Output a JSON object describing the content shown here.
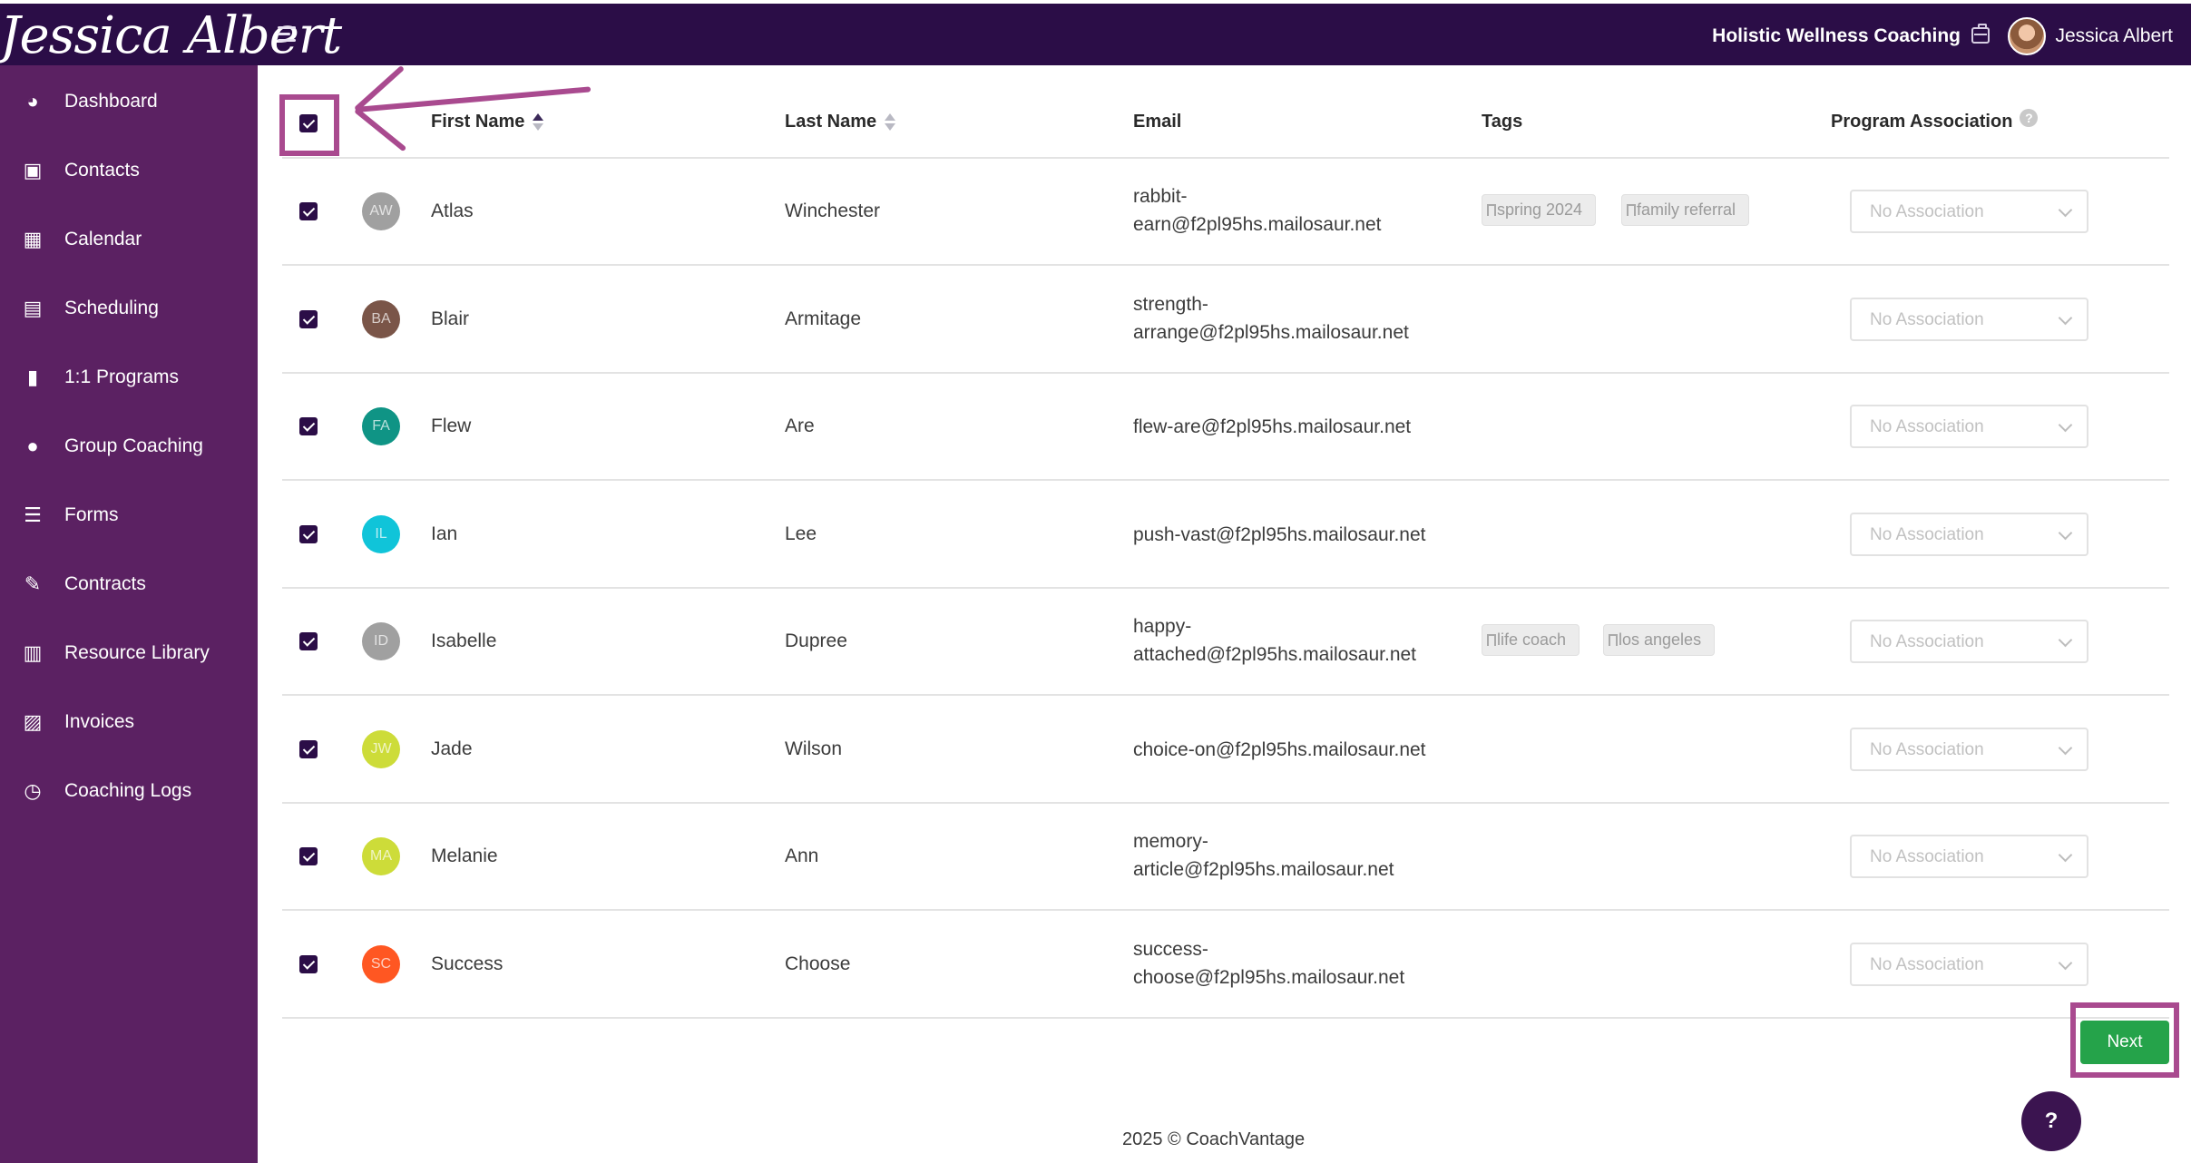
{
  "header": {
    "logo": "Jessica Albert",
    "business_name": "Holistic Wellness Coaching",
    "user_name": "Jessica Albert"
  },
  "sidebar": {
    "items": [
      {
        "label": "Dashboard",
        "icon": "dashboard-icon"
      },
      {
        "label": "Contacts",
        "icon": "contacts-icon"
      },
      {
        "label": "Calendar",
        "icon": "calendar-icon"
      },
      {
        "label": "Scheduling",
        "icon": "scheduling-icon"
      },
      {
        "label": "1:1 Programs",
        "icon": "book-icon"
      },
      {
        "label": "Group Coaching",
        "icon": "group-icon"
      },
      {
        "label": "Forms",
        "icon": "checklist-icon"
      },
      {
        "label": "Contracts",
        "icon": "contract-icon"
      },
      {
        "label": "Resource Library",
        "icon": "library-icon"
      },
      {
        "label": "Invoices",
        "icon": "invoice-icon"
      },
      {
        "label": "Coaching Logs",
        "icon": "clock-icon"
      }
    ]
  },
  "table": {
    "columns": {
      "first_name": "First Name",
      "last_name": "Last Name",
      "email": "Email",
      "tags": "Tags",
      "program_association": "Program Association"
    },
    "rows": [
      {
        "initials": "AW",
        "avatar_color": "#a0a0a0",
        "first": "Atlas",
        "last": "Winchester",
        "email_1": "rabbit-",
        "email_2": "earn@f2pl95hs.mailosaur.net",
        "tags": [
          "spring 2024",
          "family referral"
        ],
        "association": "No Association"
      },
      {
        "initials": "BA",
        "avatar_color": "#7a5548",
        "first": "Blair",
        "last": "Armitage",
        "email_1": "strength-",
        "email_2": "arrange@f2pl95hs.mailosaur.net",
        "tags": [],
        "association": "No Association"
      },
      {
        "initials": "FA",
        "avatar_color": "#0f9485",
        "first": "Flew",
        "last": "Are",
        "email_1": "flew-are@f2pl95hs.mailosaur.net",
        "email_2": "",
        "tags": [],
        "association": "No Association"
      },
      {
        "initials": "IL",
        "avatar_color": "#10c4d9",
        "first": "Ian",
        "last": "Lee",
        "email_1": "push-vast@f2pl95hs.mailosaur.net",
        "email_2": "",
        "tags": [],
        "association": "No Association"
      },
      {
        "initials": "ID",
        "avatar_color": "#a0a0a0",
        "first": "Isabelle",
        "last": "Dupree",
        "email_1": "happy-",
        "email_2": "attached@f2pl95hs.mailosaur.net",
        "tags": [
          "life coach",
          "los angeles"
        ],
        "association": "No Association"
      },
      {
        "initials": "JW",
        "avatar_color": "#cddc39",
        "first": "Jade",
        "last": "Wilson",
        "email_1": "choice-on@f2pl95hs.mailosaur.net",
        "email_2": "",
        "tags": [],
        "association": "No Association"
      },
      {
        "initials": "MA",
        "avatar_color": "#cddc39",
        "first": "Melanie",
        "last": "Ann",
        "email_1": "memory-",
        "email_2": "article@f2pl95hs.mailosaur.net",
        "tags": [],
        "association": "No Association"
      },
      {
        "initials": "SC",
        "avatar_color": "#ff5722",
        "first": "Success",
        "last": "Choose",
        "email_1": "success-",
        "email_2": "choose@f2pl95hs.mailosaur.net",
        "tags": [],
        "association": "No Association"
      }
    ]
  },
  "actions": {
    "next_label": "Next",
    "help_label": "?"
  },
  "footer": {
    "text": "2025 © CoachVantage"
  },
  "colors": {
    "topbar": "#2b0d47",
    "sidebar": "#5b2162",
    "accent": "#a94a8f",
    "primary_button": "#25a34a"
  }
}
